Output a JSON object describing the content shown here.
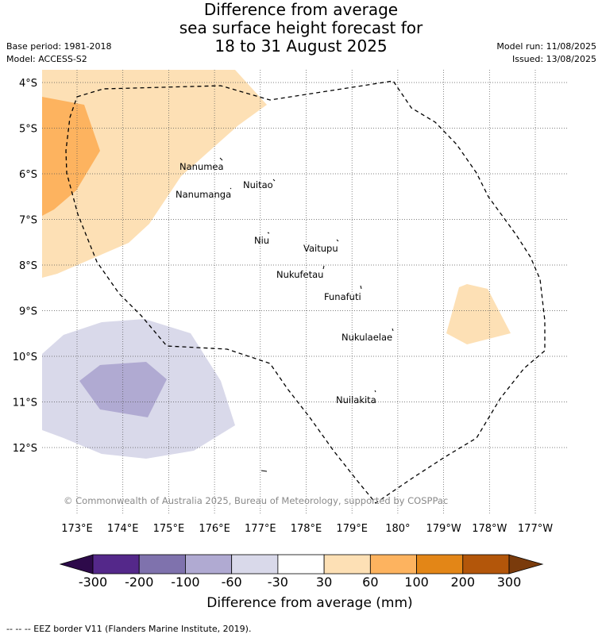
{
  "title": {
    "line1": "Difference from average",
    "line2": "sea surface height forecast for",
    "line3": "18 to 31 August 2025"
  },
  "meta": {
    "base_period": "Base period: 1981-2018",
    "model": "Model: ACCESS-S2",
    "model_run": "Model run: 11/08/2025",
    "issued": "Issued: 13/08/2025"
  },
  "map": {
    "lat_labels": [
      "4°S",
      "5°S",
      "6°S",
      "7°S",
      "8°S",
      "9°S",
      "10°S",
      "11°S",
      "12°S"
    ],
    "lon_labels": [
      "173°E",
      "174°E",
      "175°E",
      "176°E",
      "177°E",
      "178°E",
      "179°E",
      "180°",
      "179°W",
      "178°W",
      "177°W"
    ],
    "islands": [
      {
        "name": "Nanumea"
      },
      {
        "name": "Nuitao"
      },
      {
        "name": "Nanumanga"
      },
      {
        "name": "Niu"
      },
      {
        "name": "Vaitupu"
      },
      {
        "name": "Nukufetau"
      },
      {
        "name": "Funafuti"
      },
      {
        "name": "Nukulaelae"
      },
      {
        "name": "Nuilakita"
      }
    ],
    "credit": "© Commonwealth of Australia 2025, Bureau of Meteorology, supported by COSPPac"
  },
  "colorbar": {
    "ticks": [
      "-300",
      "-200",
      "-100",
      "-60",
      "-30",
      "30",
      "60",
      "100",
      "200",
      "300"
    ],
    "colors": [
      "#2d0a4a",
      "#54288a",
      "#7f72ad",
      "#b0aad2",
      "#d9d9ea",
      "#ffffff",
      "#fde0b5",
      "#fdb35f",
      "#e38617",
      "#b3560a",
      "#7a3b0c"
    ],
    "title": "Difference from average (mm)"
  },
  "footnote": "-- -- -- EEZ border V11 (Flanders Marine Institute, 2019)."
}
